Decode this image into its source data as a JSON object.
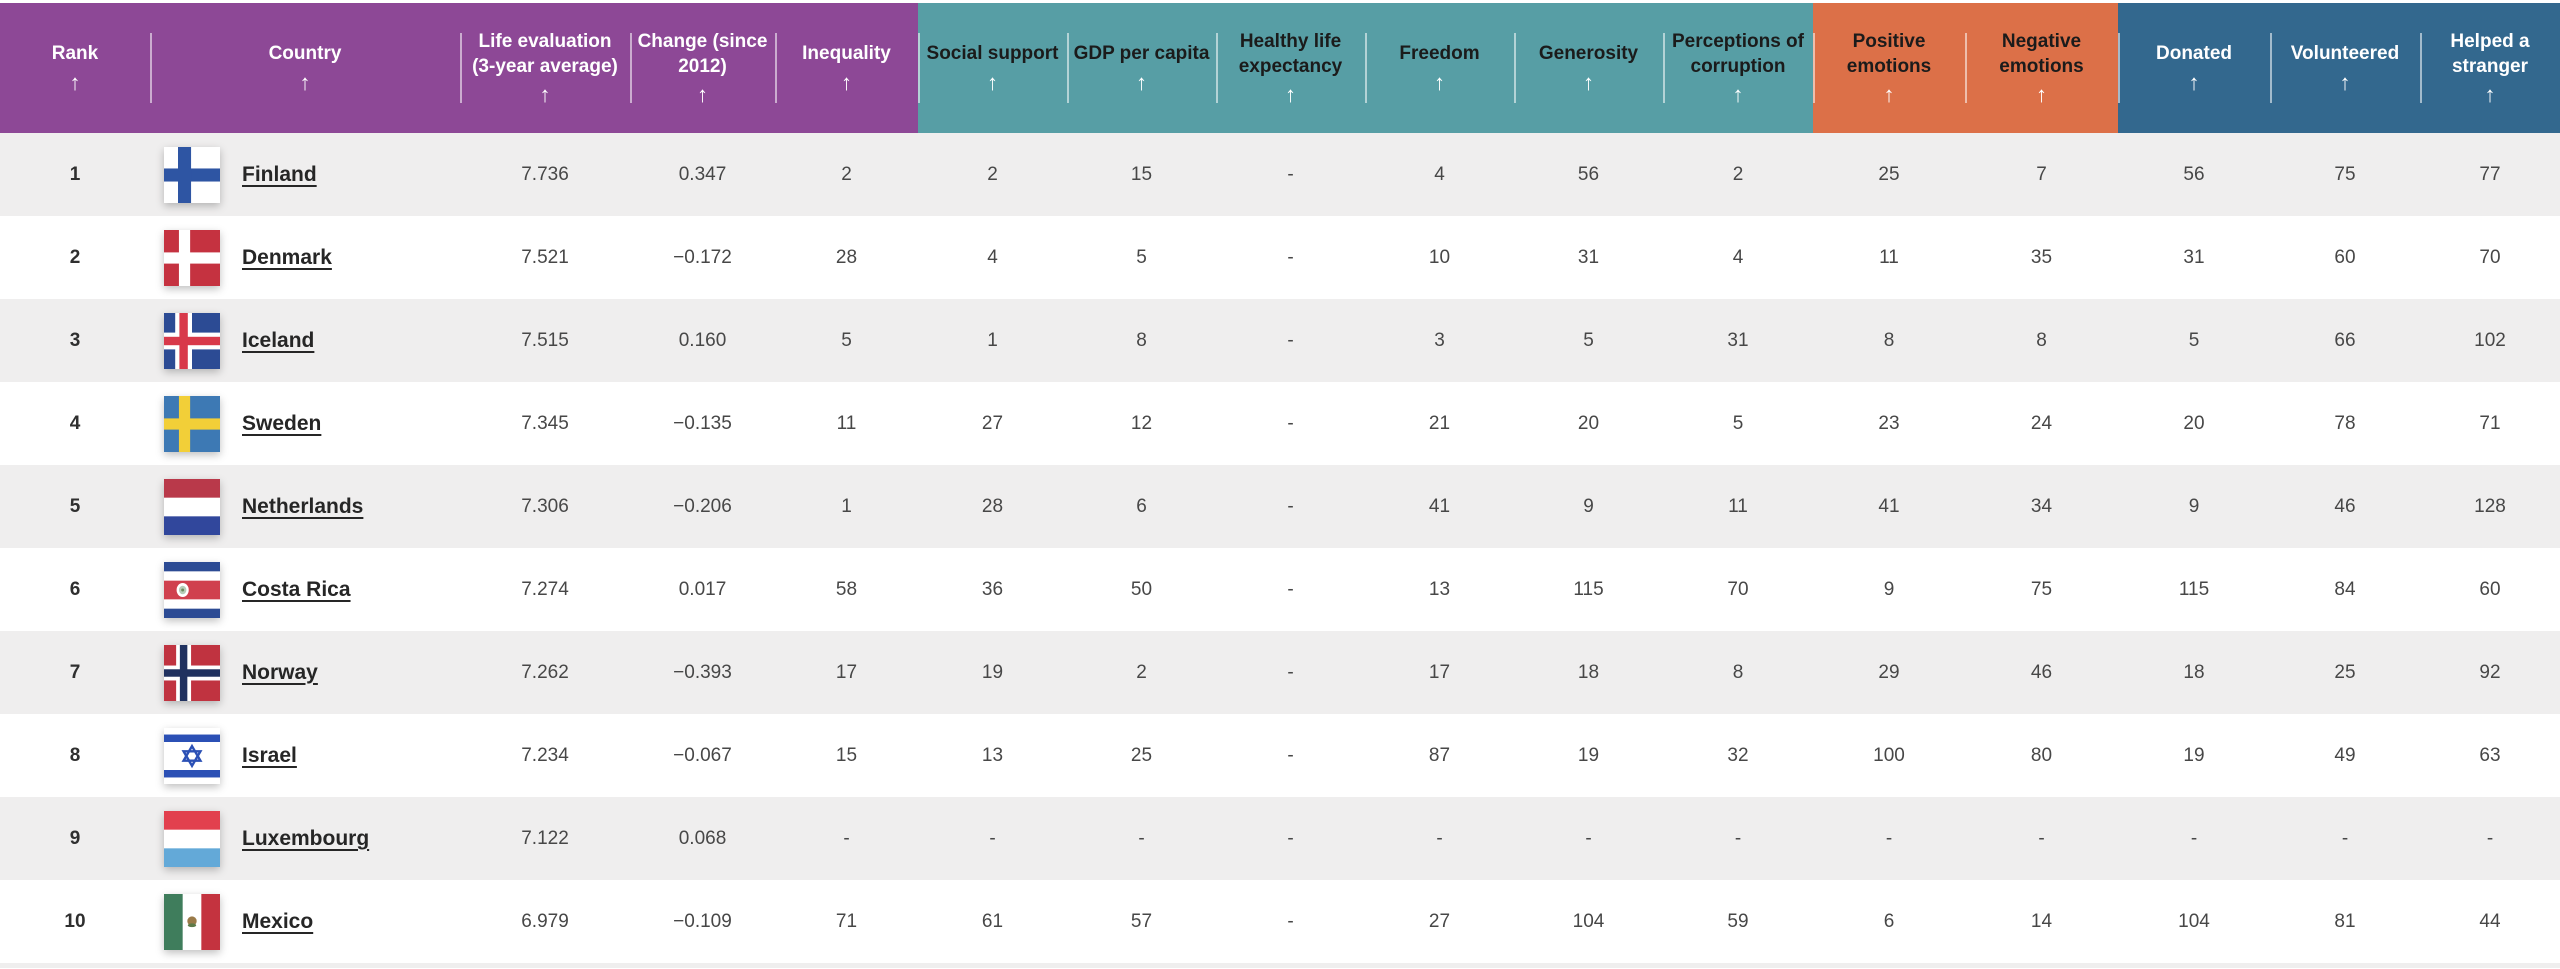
{
  "sort_icon": "↑",
  "colors": {
    "purple_group": "#8d4896",
    "teal_group": "#579ea5",
    "orange_group": "#dc7048",
    "blue_group": "#33688e",
    "row_stripe": "#efeeee",
    "header_light_text": "#ffffff",
    "header_dark_text": "#1b1b1b"
  },
  "table": {
    "columns": [
      {
        "id": "rank",
        "label": "Rank",
        "group": "purple"
      },
      {
        "id": "country",
        "label": "Country",
        "group": "purple"
      },
      {
        "id": "life_evaluation",
        "label": "Life evaluation (3-year average)",
        "group": "purple"
      },
      {
        "id": "change",
        "label": "Change (since 2012)",
        "group": "purple"
      },
      {
        "id": "inequality",
        "label": "Inequality",
        "group": "purple"
      },
      {
        "id": "social_support",
        "label": "Social support",
        "group": "teal"
      },
      {
        "id": "gdp_per_capita",
        "label": "GDP per capita",
        "group": "teal"
      },
      {
        "id": "healthy_life",
        "label": "Healthy life expectancy",
        "group": "teal"
      },
      {
        "id": "freedom",
        "label": "Freedom",
        "group": "teal"
      },
      {
        "id": "generosity",
        "label": "Generosity",
        "group": "teal"
      },
      {
        "id": "corruption",
        "label": "Perceptions of corruption",
        "group": "teal"
      },
      {
        "id": "positive",
        "label": "Positive emotions",
        "group": "orange"
      },
      {
        "id": "negative",
        "label": "Negative emotions",
        "group": "orange"
      },
      {
        "id": "donated",
        "label": "Donated",
        "group": "blue"
      },
      {
        "id": "volunteered",
        "label": "Volunteered",
        "group": "blue"
      },
      {
        "id": "helped",
        "label": "Helped a stranger",
        "group": "blue"
      }
    ],
    "rows": [
      {
        "rank": "1",
        "country": "Finland",
        "values": [
          "7.736",
          "0.347",
          "2",
          "2",
          "15",
          "-",
          "4",
          "56",
          "2",
          "25",
          "7",
          "56",
          "75",
          "77"
        ]
      },
      {
        "rank": "2",
        "country": "Denmark",
        "values": [
          "7.521",
          "−0.172",
          "28",
          "4",
          "5",
          "-",
          "10",
          "31",
          "4",
          "11",
          "35",
          "31",
          "60",
          "70"
        ]
      },
      {
        "rank": "3",
        "country": "Iceland",
        "values": [
          "7.515",
          "0.160",
          "5",
          "1",
          "8",
          "-",
          "3",
          "5",
          "31",
          "8",
          "8",
          "5",
          "66",
          "102"
        ]
      },
      {
        "rank": "4",
        "country": "Sweden",
        "values": [
          "7.345",
          "−0.135",
          "11",
          "27",
          "12",
          "-",
          "21",
          "20",
          "5",
          "23",
          "24",
          "20",
          "78",
          "71"
        ]
      },
      {
        "rank": "5",
        "country": "Netherlands",
        "values": [
          "7.306",
          "−0.206",
          "1",
          "28",
          "6",
          "-",
          "41",
          "9",
          "11",
          "41",
          "34",
          "9",
          "46",
          "128"
        ]
      },
      {
        "rank": "6",
        "country": "Costa Rica",
        "values": [
          "7.274",
          "0.017",
          "58",
          "36",
          "50",
          "-",
          "13",
          "115",
          "70",
          "9",
          "75",
          "115",
          "84",
          "60"
        ]
      },
      {
        "rank": "7",
        "country": "Norway",
        "values": [
          "7.262",
          "−0.393",
          "17",
          "19",
          "2",
          "-",
          "17",
          "18",
          "8",
          "29",
          "46",
          "18",
          "25",
          "92"
        ]
      },
      {
        "rank": "8",
        "country": "Israel",
        "values": [
          "7.234",
          "−0.067",
          "15",
          "13",
          "25",
          "-",
          "87",
          "19",
          "32",
          "100",
          "80",
          "19",
          "49",
          "63"
        ]
      },
      {
        "rank": "9",
        "country": "Luxembourg",
        "values": [
          "7.122",
          "0.068",
          "-",
          "-",
          "-",
          "-",
          "-",
          "-",
          "-",
          "-",
          "-",
          "-",
          "-",
          "-"
        ]
      },
      {
        "rank": "10",
        "country": "Mexico",
        "values": [
          "6.979",
          "−0.109",
          "71",
          "61",
          "57",
          "-",
          "27",
          "104",
          "59",
          "6",
          "14",
          "104",
          "81",
          "44"
        ]
      }
    ]
  }
}
